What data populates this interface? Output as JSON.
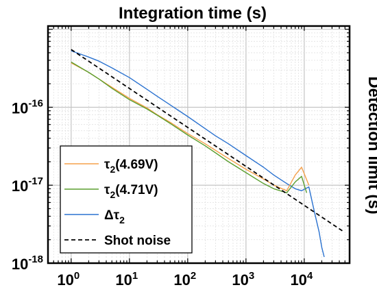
{
  "chart_data": {
    "type": "line",
    "title": "Integration time (s)",
    "xlabel": "Integration time (s)",
    "ylabel": "Detection limit (s)",
    "xscale": "log",
    "yscale": "log",
    "xlim": [
      0.4,
      60000
    ],
    "ylim": [
      1e-18,
      1.1e-15
    ],
    "grid": true,
    "x_ticks": [
      {
        "value": 1,
        "base": "10",
        "exp": "0"
      },
      {
        "value": 10,
        "base": "10",
        "exp": "1"
      },
      {
        "value": 100,
        "base": "10",
        "exp": "2"
      },
      {
        "value": 1000,
        "base": "10",
        "exp": "3"
      },
      {
        "value": 10000,
        "base": "10",
        "exp": "4"
      }
    ],
    "y_ticks": [
      {
        "value": 1e-16,
        "base": "10",
        "exp": "-16"
      },
      {
        "value": 1e-17,
        "base": "10",
        "exp": "-17"
      },
      {
        "value": 1e-18,
        "base": "10",
        "exp": "-18"
      }
    ],
    "legend_position": "bottom-left",
    "series": [
      {
        "name": "τ2(4.69V)",
        "label_main": "τ",
        "label_sub": "2",
        "label_tail": "(4.69V)",
        "color": "#f5a04a",
        "style": "solid",
        "x": [
          1,
          2,
          3,
          5,
          10,
          20,
          30,
          50,
          100,
          200,
          300,
          500,
          1000,
          2000,
          3000,
          5000,
          7000,
          9000,
          10000,
          12000
        ],
        "y": [
          3.7e-16,
          2.8e-16,
          2.3e-16,
          1.8e-16,
          1.3e-16,
          9.8e-17,
          8e-17,
          6.4e-17,
          4.6e-17,
          3.4e-17,
          2.8e-17,
          2.2e-17,
          1.6e-17,
          1.2e-17,
          1e-17,
          8.5e-18,
          1.35e-17,
          1.7e-17,
          1.4e-17,
          1e-17
        ]
      },
      {
        "name": "τ2(4.71V)",
        "label_main": "τ",
        "label_sub": "2",
        "label_tail": "(4.71V)",
        "color": "#5a9e2e",
        "style": "solid",
        "x": [
          1,
          2,
          3,
          5,
          10,
          20,
          30,
          50,
          100,
          200,
          300,
          500,
          1000,
          2000,
          3000,
          5000,
          7000,
          9000,
          10000,
          11000
        ],
        "y": [
          3.8e-16,
          2.8e-16,
          2.3e-16,
          1.75e-16,
          1.25e-16,
          9.5e-17,
          7.9e-17,
          6.2e-17,
          4.4e-17,
          3.2e-17,
          2.6e-17,
          2e-17,
          1.45e-17,
          1.05e-17,
          9e-18,
          8e-18,
          1.1e-17,
          1.3e-17,
          1e-17,
          8e-18
        ]
      },
      {
        "name": "Δτ2",
        "label_main": "Δτ",
        "label_sub": "2",
        "label_tail": "",
        "color": "#2a72d0",
        "style": "solid",
        "x": [
          1,
          2,
          3,
          5,
          10,
          20,
          30,
          50,
          100,
          200,
          300,
          500,
          1000,
          2000,
          3000,
          5000,
          7000,
          9000,
          12000,
          15000,
          18000,
          20000,
          22000
        ],
        "y": [
          5.3e-16,
          4.4e-16,
          3.9e-16,
          3.2e-16,
          2.4e-16,
          1.7e-16,
          1.38e-16,
          1.07e-16,
          7.6e-17,
          5.3e-17,
          4.3e-17,
          3.4e-17,
          2.4e-17,
          1.7e-17,
          1.35e-17,
          1.05e-17,
          9e-18,
          8.5e-18,
          9.5e-18,
          4.5e-18,
          2.5e-18,
          1.6e-18,
          1.2e-18
        ]
      },
      {
        "name": "Shot noise",
        "label_main": "Shot noise",
        "label_sub": "",
        "label_tail": "",
        "color": "#000000",
        "style": "dashed",
        "x": [
          1,
          45000
        ],
        "y": [
          5.5e-16,
          2.6e-18
        ]
      }
    ]
  }
}
